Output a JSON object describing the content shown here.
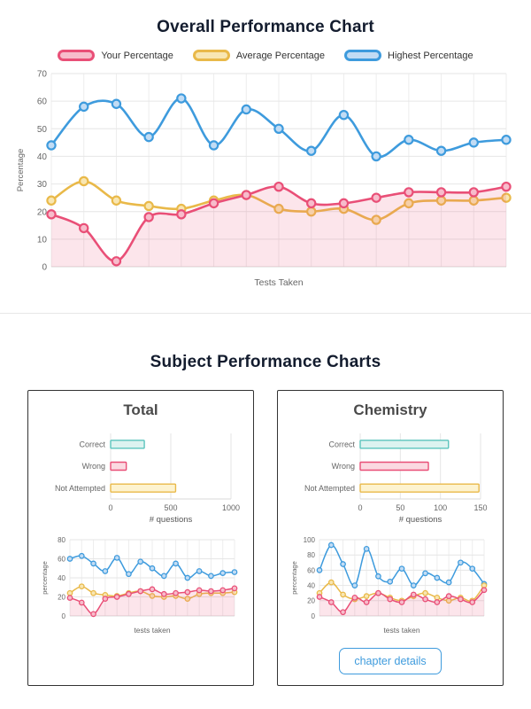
{
  "overall_section": {
    "title": "Overall Performance Chart"
  },
  "subjects_section": {
    "title": "Subject Performance Charts"
  },
  "chart_data": {
    "overall": {
      "type": "line",
      "title": "Overall Performance Chart",
      "xlabel": "Tests Taken",
      "ylabel": "Percentage",
      "ylim": [
        0,
        70
      ],
      "yticks": [
        0,
        10,
        20,
        30,
        40,
        50,
        60,
        70
      ],
      "grid": true,
      "legend_position": "top",
      "series": [
        {
          "name": "Your Percentage",
          "color": "#e94f77",
          "marker_fill": "#f7bccb",
          "area_fill": "rgba(233,79,119,0.15)",
          "fill": true,
          "values": [
            19,
            14,
            2,
            18,
            19,
            23,
            26,
            29,
            23,
            23,
            25,
            27,
            27,
            27,
            29
          ]
        },
        {
          "name": "Average Percentage",
          "color": "#e9b949",
          "marker_fill": "#f8e6b2",
          "values": [
            24,
            31,
            24,
            22,
            21,
            24,
            26,
            21,
            20,
            21,
            17,
            23,
            24,
            24,
            25
          ]
        },
        {
          "name": "Highest Percentage",
          "color": "#3e9bdd",
          "marker_fill": "#c2dcf4",
          "values": [
            44,
            58,
            59,
            47,
            61,
            44,
            57,
            50,
            42,
            55,
            40,
            46,
            42,
            45,
            46
          ]
        }
      ]
    },
    "subjects": [
      {
        "title": "Total",
        "bar": {
          "type": "bar",
          "orientation": "horizontal",
          "categories": [
            "Correct",
            "Wrong",
            "Not Attempted"
          ],
          "values": [
            280,
            130,
            540
          ],
          "xlabel": "# questions",
          "xlim": [
            0,
            1000
          ],
          "xticks": [
            0,
            500,
            1000
          ],
          "colors": [
            {
              "fill": "#dcf3f0",
              "border": "#5bc4bd"
            },
            {
              "fill": "#fbd9e1",
              "border": "#e94f77"
            },
            {
              "fill": "#fdf3d0",
              "border": "#e9b949"
            }
          ]
        },
        "line": {
          "type": "line",
          "xlabel": "tests taken",
          "ylabel": "percentage",
          "ylim": [
            0,
            80
          ],
          "yticks": [
            0,
            20,
            40,
            60,
            80
          ],
          "series": [
            {
              "name": "Your Percentage",
              "color": "#e94f77",
              "marker_fill": "#f7bccb",
              "area_fill": "rgba(233,79,119,0.15)",
              "fill": true,
              "values": [
                19,
                14,
                2,
                18,
                20,
                23,
                26,
                28,
                23,
                24,
                25,
                27,
                26,
                27,
                29
              ]
            },
            {
              "name": "Average Percentage",
              "color": "#e9b949",
              "marker_fill": "#f8e6b2",
              "values": [
                24,
                31,
                24,
                22,
                21,
                24,
                26,
                21,
                20,
                21,
                18,
                23,
                24,
                24,
                25
              ]
            },
            {
              "name": "Highest Percentage",
              "color": "#3e9bdd",
              "marker_fill": "#c2dcf4",
              "values": [
                60,
                63,
                55,
                47,
                61,
                44,
                57,
                50,
                42,
                55,
                40,
                47,
                42,
                45,
                46
              ]
            }
          ]
        }
      },
      {
        "title": "Chemistry",
        "button_label": "chapter details",
        "bar": {
          "type": "bar",
          "orientation": "horizontal",
          "categories": [
            "Correct",
            "Wrong",
            "Not Attempted"
          ],
          "values": [
            110,
            85,
            148
          ],
          "xlabel": "# questions",
          "xlim": [
            0,
            150
          ],
          "xticks": [
            0,
            50,
            100,
            150
          ],
          "colors": [
            {
              "fill": "#dcf3f0",
              "border": "#5bc4bd"
            },
            {
              "fill": "#fbd9e1",
              "border": "#e94f77"
            },
            {
              "fill": "#fdf3d0",
              "border": "#e9b949"
            }
          ]
        },
        "line": {
          "type": "line",
          "xlabel": "tests taken",
          "ylabel": "percentage",
          "ylim": [
            0,
            100
          ],
          "yticks": [
            0,
            20,
            40,
            60,
            80,
            100
          ],
          "series": [
            {
              "name": "Your Percentage",
              "color": "#e94f77",
              "marker_fill": "#f7bccb",
              "area_fill": "rgba(233,79,119,0.15)",
              "fill": true,
              "values": [
                25,
                18,
                5,
                24,
                18,
                30,
                22,
                18,
                28,
                22,
                18,
                26,
                22,
                18,
                34
              ]
            },
            {
              "name": "Average Percentage",
              "color": "#e9b949",
              "marker_fill": "#f8e6b2",
              "values": [
                30,
                44,
                28,
                22,
                26,
                30,
                24,
                20,
                26,
                30,
                24,
                20,
                24,
                20,
                40
              ]
            },
            {
              "name": "Highest Percentage",
              "color": "#3e9bdd",
              "marker_fill": "#c2dcf4",
              "values": [
                60,
                93,
                68,
                40,
                88,
                52,
                45,
                62,
                40,
                56,
                50,
                44,
                70,
                62,
                42
              ]
            }
          ]
        }
      }
    ]
  }
}
